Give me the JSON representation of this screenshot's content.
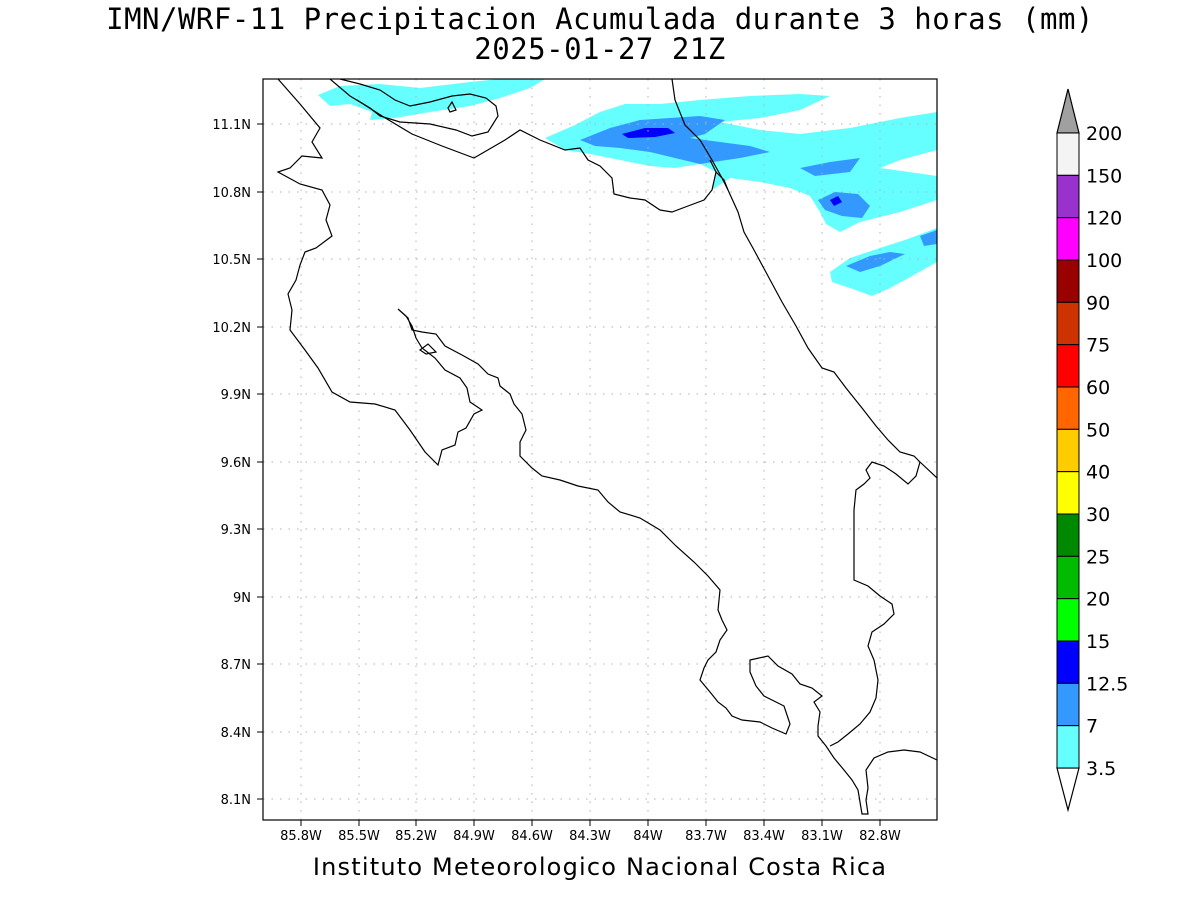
{
  "title": {
    "line1": "IMN/WRF-11 Precipitacion Acumulada durante 3 horas (mm)",
    "line2": "2025-01-27 21Z"
  },
  "footer": "Instituto Meteorologico Nacional Costa Rica",
  "map": {
    "region": "Costa Rica",
    "lon_range": [
      -86.0,
      -82.4
    ],
    "lat_range": [
      8.0,
      11.3
    ],
    "lon_ticks": [
      "85.8W",
      "85.5W",
      "85.2W",
      "84.9W",
      "84.6W",
      "84.3W",
      "84W",
      "83.7W",
      "83.4W",
      "83.1W",
      "82.8W"
    ],
    "lat_ticks": [
      "11.1N",
      "10.8N",
      "10.5N",
      "10.2N",
      "9.9N",
      "9.6N",
      "9.3N",
      "9N",
      "8.7N",
      "8.4N",
      "8.1N"
    ],
    "grid": "dotted"
  },
  "colorbar": {
    "labels": [
      "200",
      "150",
      "120",
      "100",
      "90",
      "75",
      "60",
      "50",
      "40",
      "30",
      "25",
      "20",
      "15",
      "12.5",
      "7",
      "3.5"
    ],
    "colors": [
      "#f4f4f4",
      "#9932cc",
      "#ff00ff",
      "#990000",
      "#cc3300",
      "#ff0000",
      "#ff6600",
      "#ffcc00",
      "#ffff00",
      "#008800",
      "#00bb00",
      "#00ff00",
      "#0000ff",
      "#3399ff",
      "#66ffff"
    ],
    "top_arrow_color": "#a0a0a0",
    "bottom_arrow_color": "#ffffff"
  }
}
